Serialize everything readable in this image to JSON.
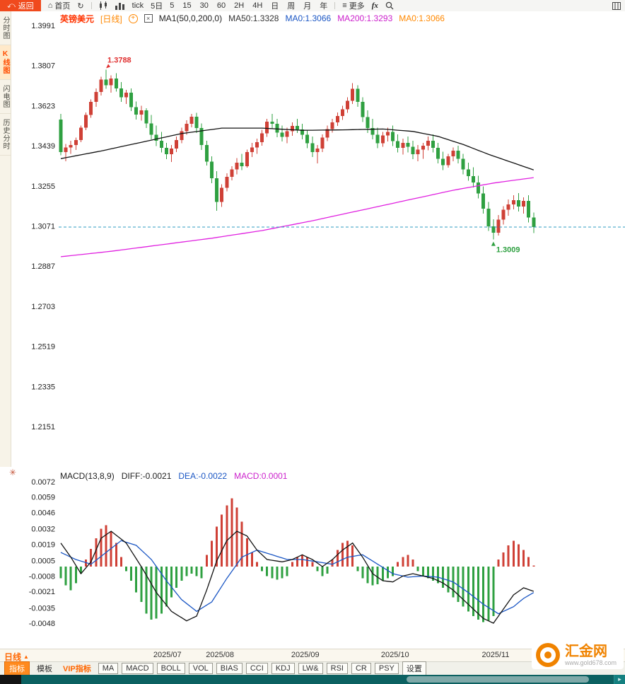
{
  "toolbar": {
    "back_label": "返回",
    "home_label": "首页",
    "tick_label": "tick",
    "five_day_label": "5日",
    "periods": [
      "5",
      "15",
      "30",
      "60",
      "2H",
      "4H",
      "日",
      "周",
      "月",
      "年"
    ],
    "more_label": "更多",
    "fx_label": "fx"
  },
  "side_tabs": [
    {
      "label": "分时图",
      "active": false
    },
    {
      "label": "K线图",
      "active": true
    },
    {
      "label": "闪电图",
      "active": false
    },
    {
      "label": "历史分时",
      "active": false
    }
  ],
  "price_header": {
    "symbol": "英镑美元",
    "period": "[日线]",
    "ma_param": "MA1(50,0,200,0)",
    "ma_items": [
      {
        "text": "MA50:1.3328",
        "color": "#333333"
      },
      {
        "text": "MA0:1.3066",
        "color": "#1a56c4"
      },
      {
        "text": "MA200:1.3293",
        "color": "#cc22cc"
      },
      {
        "text": "MA0:1.3066",
        "color": "#ff8800"
      }
    ]
  },
  "macd_header": {
    "items": [
      {
        "text": "MACD(13,8,9)",
        "color": "#222222"
      },
      {
        "text": "DIFF:-0.0021",
        "color": "#222222"
      },
      {
        "text": "DEA:-0.0022",
        "color": "#1a56c4"
      },
      {
        "text": "MACD:0.0001",
        "color": "#cc22cc"
      }
    ]
  },
  "bottom_bar": {
    "period_selector": "日线",
    "tabs": [
      {
        "label": "指标",
        "style": "active"
      },
      {
        "label": "模板",
        "style": "plain"
      },
      {
        "label": "VIP指标",
        "style": "vip"
      },
      {
        "label": "MA",
        "style": "box"
      },
      {
        "label": "MACD",
        "style": "box"
      },
      {
        "label": "BOLL",
        "style": "box"
      },
      {
        "label": "VOL",
        "style": "box"
      },
      {
        "label": "BIAS",
        "style": "box"
      },
      {
        "label": "CCI",
        "style": "box"
      },
      {
        "label": "KDJ",
        "style": "box"
      },
      {
        "label": "LW&",
        "style": "box"
      },
      {
        "label": "RSI",
        "style": "box"
      },
      {
        "label": "CR",
        "style": "box"
      },
      {
        "label": "PSY",
        "style": "box"
      },
      {
        "label": "设置",
        "style": "box"
      }
    ]
  },
  "watermark": {
    "brand": "汇金网",
    "url": "www.gold678.com"
  },
  "chart_data": {
    "type": "candlestick",
    "title": "英镑美元 日线 (GBP/USD daily with MA50/MA200 and MACD)",
    "price_axis": {
      "labels": [
        1.3991,
        1.3807,
        1.3623,
        1.3439,
        1.3255,
        1.3071,
        1.2887,
        1.2703,
        1.2519,
        1.2335,
        1.2151
      ],
      "top_value": 1.3991,
      "bottom_value": 1.2151
    },
    "x_ticks": [
      {
        "label": "2025/07",
        "pos": 0.19
      },
      {
        "label": "2025/08",
        "pos": 0.283
      },
      {
        "label": "2025/09",
        "pos": 0.434
      },
      {
        "label": "2025/10",
        "pos": 0.593
      },
      {
        "label": "2025/11",
        "pos": 0.771
      }
    ],
    "current_price": 1.3066,
    "annotations": {
      "high_label": "1.3788",
      "low_label": "1.3009"
    },
    "colors": {
      "up": "#cf4036",
      "down": "#2fa041",
      "ma50": "#111111",
      "ma200": "#e020e0",
      "current_line": "#2d9bc1",
      "diff": "#111111",
      "dea": "#1a56c4",
      "hist_up": "#cf4036",
      "hist_down": "#2fa041"
    },
    "ohlc": [
      [
        1.356,
        1.3585,
        1.3395,
        1.341
      ],
      [
        1.341,
        1.3448,
        1.3368,
        1.3432
      ],
      [
        1.3432,
        1.3462,
        1.3402,
        1.3442
      ],
      [
        1.3442,
        1.3476,
        1.342,
        1.3466
      ],
      [
        1.3466,
        1.3532,
        1.3455,
        1.3522
      ],
      [
        1.3522,
        1.3592,
        1.351,
        1.358
      ],
      [
        1.358,
        1.3652,
        1.3568,
        1.364
      ],
      [
        1.364,
        1.3702,
        1.3618,
        1.3686
      ],
      [
        1.3686,
        1.3756,
        1.367,
        1.3742
      ],
      [
        1.3742,
        1.3788,
        1.37,
        1.3716
      ],
      [
        1.3716,
        1.3762,
        1.3682,
        1.3748
      ],
      [
        1.3748,
        1.3772,
        1.3688,
        1.3702
      ],
      [
        1.3702,
        1.3732,
        1.364,
        1.3662
      ],
      [
        1.3662,
        1.3696,
        1.363,
        1.3682
      ],
      [
        1.3682,
        1.3702,
        1.3598,
        1.3616
      ],
      [
        1.3616,
        1.3642,
        1.356,
        1.3582
      ],
      [
        1.3582,
        1.3622,
        1.3554,
        1.3602
      ],
      [
        1.3602,
        1.3612,
        1.352,
        1.3542
      ],
      [
        1.3542,
        1.358,
        1.3468,
        1.349
      ],
      [
        1.349,
        1.3532,
        1.3438,
        1.3462
      ],
      [
        1.3462,
        1.3502,
        1.3408,
        1.343
      ],
      [
        1.343,
        1.3452,
        1.3378,
        1.34
      ],
      [
        1.34,
        1.3442,
        1.3364,
        1.3426
      ],
      [
        1.3426,
        1.3482,
        1.341,
        1.3466
      ],
      [
        1.3466,
        1.3522,
        1.345,
        1.3506
      ],
      [
        1.3506,
        1.3556,
        1.349,
        1.354
      ],
      [
        1.354,
        1.3586,
        1.3524,
        1.3572
      ],
      [
        1.3572,
        1.359,
        1.3498,
        1.352
      ],
      [
        1.352,
        1.3542,
        1.342,
        1.3442
      ],
      [
        1.3442,
        1.3462,
        1.3348,
        1.3366
      ],
      [
        1.3366,
        1.339,
        1.3268,
        1.329
      ],
      [
        1.329,
        1.3322,
        1.3141,
        1.3182
      ],
      [
        1.3182,
        1.3262,
        1.3158,
        1.3246
      ],
      [
        1.3246,
        1.3312,
        1.323,
        1.3296
      ],
      [
        1.3296,
        1.3346,
        1.328,
        1.333
      ],
      [
        1.333,
        1.3382,
        1.3308,
        1.3362
      ],
      [
        1.3362,
        1.3402,
        1.3328,
        1.3346
      ],
      [
        1.3346,
        1.3422,
        1.3338,
        1.341
      ],
      [
        1.341,
        1.3452,
        1.3388,
        1.3432
      ],
      [
        1.3432,
        1.3472,
        1.3402,
        1.3456
      ],
      [
        1.3456,
        1.3512,
        1.344,
        1.3496
      ],
      [
        1.3496,
        1.3562,
        1.348,
        1.355
      ],
      [
        1.355,
        1.3586,
        1.3518,
        1.354
      ],
      [
        1.354,
        1.3562,
        1.3478,
        1.35
      ],
      [
        1.35,
        1.3532,
        1.3458,
        1.348
      ],
      [
        1.348,
        1.3522,
        1.345,
        1.3506
      ],
      [
        1.3506,
        1.3546,
        1.3484,
        1.353
      ],
      [
        1.353,
        1.3562,
        1.3498,
        1.3514
      ],
      [
        1.3514,
        1.354,
        1.3468,
        1.349
      ],
      [
        1.349,
        1.3512,
        1.3428,
        1.345
      ],
      [
        1.345,
        1.3482,
        1.3388,
        1.341
      ],
      [
        1.341,
        1.3442,
        1.3358,
        1.3426
      ],
      [
        1.3426,
        1.3492,
        1.341,
        1.3476
      ],
      [
        1.3476,
        1.3532,
        1.346,
        1.3516
      ],
      [
        1.3516,
        1.3562,
        1.35,
        1.3546
      ],
      [
        1.3546,
        1.3592,
        1.353,
        1.3576
      ],
      [
        1.3576,
        1.3622,
        1.3558,
        1.3606
      ],
      [
        1.3606,
        1.3662,
        1.359,
        1.3646
      ],
      [
        1.3646,
        1.3726,
        1.363,
        1.37
      ],
      [
        1.37,
        1.3716,
        1.3618,
        1.364
      ],
      [
        1.364,
        1.3662,
        1.3548,
        1.357
      ],
      [
        1.357,
        1.3602,
        1.3498,
        1.352
      ],
      [
        1.352,
        1.3562,
        1.3468,
        1.349
      ],
      [
        1.349,
        1.3522,
        1.3428,
        1.345
      ],
      [
        1.345,
        1.3502,
        1.3434,
        1.3486
      ],
      [
        1.3486,
        1.3522,
        1.3458,
        1.3502
      ],
      [
        1.3502,
        1.3532,
        1.3438,
        1.346
      ],
      [
        1.346,
        1.3492,
        1.3408,
        1.343
      ],
      [
        1.343,
        1.3472,
        1.3398,
        1.3452
      ],
      [
        1.3452,
        1.3482,
        1.3408,
        1.3434
      ],
      [
        1.3434,
        1.3462,
        1.3378,
        1.34
      ],
      [
        1.34,
        1.3442,
        1.3368,
        1.3422
      ],
      [
        1.3422,
        1.3452,
        1.338,
        1.344
      ],
      [
        1.344,
        1.3482,
        1.3418,
        1.3462
      ],
      [
        1.3462,
        1.3492,
        1.3408,
        1.343
      ],
      [
        1.343,
        1.3452,
        1.3358,
        1.338
      ],
      [
        1.338,
        1.3412,
        1.3328,
        1.335
      ],
      [
        1.335,
        1.3402,
        1.3338,
        1.339
      ],
      [
        1.339,
        1.3432,
        1.3368,
        1.3416
      ],
      [
        1.3416,
        1.344,
        1.3358,
        1.338
      ],
      [
        1.338,
        1.3402,
        1.3308,
        1.333
      ],
      [
        1.333,
        1.3362,
        1.3278,
        1.33
      ],
      [
        1.33,
        1.334,
        1.3248,
        1.327
      ],
      [
        1.327,
        1.3302,
        1.3198,
        1.322
      ],
      [
        1.322,
        1.3252,
        1.3128,
        1.315
      ],
      [
        1.315,
        1.3182,
        1.3048,
        1.307
      ],
      [
        1.307,
        1.3102,
        1.3009,
        1.304
      ],
      [
        1.304,
        1.3122,
        1.3028,
        1.31
      ],
      [
        1.31,
        1.3162,
        1.3078,
        1.3146
      ],
      [
        1.3146,
        1.3192,
        1.3118,
        1.317
      ],
      [
        1.317,
        1.3212,
        1.3148,
        1.319
      ],
      [
        1.319,
        1.3222,
        1.3138,
        1.316
      ],
      [
        1.316,
        1.3202,
        1.3128,
        1.3186
      ],
      [
        1.3186,
        1.3212,
        1.3088,
        1.311
      ],
      [
        1.311,
        1.3132,
        1.3038,
        1.3066
      ]
    ],
    "ma50_points": [
      [
        0,
        1.338
      ],
      [
        8,
        1.3415
      ],
      [
        16,
        1.3455
      ],
      [
        24,
        1.3495
      ],
      [
        32,
        1.352
      ],
      [
        40,
        1.352
      ],
      [
        48,
        1.351
      ],
      [
        56,
        1.3512
      ],
      [
        64,
        1.3516
      ],
      [
        70,
        1.3505
      ],
      [
        75,
        1.3482
      ],
      [
        80,
        1.3445
      ],
      [
        85,
        1.34
      ],
      [
        90,
        1.336
      ],
      [
        94,
        1.3328
      ]
    ],
    "ma200_points": [
      [
        0,
        1.293
      ],
      [
        10,
        1.2955
      ],
      [
        20,
        1.2985
      ],
      [
        30,
        1.3015
      ],
      [
        40,
        1.305
      ],
      [
        50,
        1.3095
      ],
      [
        60,
        1.3145
      ],
      [
        70,
        1.3195
      ],
      [
        78,
        1.3235
      ],
      [
        86,
        1.3268
      ],
      [
        94,
        1.3293
      ]
    ],
    "macd": {
      "params": "(13,8,9)",
      "diff": -0.0021,
      "dea": -0.0022,
      "macd": 0.0001,
      "axis_labels": [
        0.0072,
        0.0059,
        0.0046,
        0.0032,
        0.0019,
        0.0005,
        -0.0008,
        -0.0021,
        -0.0035,
        -0.0048
      ],
      "hist": [
        -0.001,
        -0.0016,
        -0.002,
        -0.0014,
        -0.0006,
        0.0006,
        0.0015,
        0.0024,
        0.0032,
        0.0035,
        0.003,
        0.002,
        0.0008,
        -0.0004,
        -0.0012,
        -0.0022,
        -0.003,
        -0.004,
        -0.0045,
        -0.0044,
        -0.004,
        -0.0034,
        -0.0026,
        -0.0018,
        -0.0012,
        -0.0008,
        -0.0006,
        -0.0008,
        -0.001,
        0.001,
        0.0022,
        0.0034,
        0.0044,
        0.0052,
        0.0058,
        0.005,
        0.0038,
        0.0024,
        0.0012,
        0.0004,
        -0.0004,
        -0.0008,
        -0.001,
        -0.0011,
        -0.001,
        -0.0008,
        0.0004,
        0.0008,
        0.001,
        0.0008,
        0.0004,
        -0.0004,
        -0.0008,
        -0.0006,
        0.0006,
        0.0014,
        0.002,
        0.0022,
        0.0018,
        -0.0004,
        -0.001,
        -0.0014,
        -0.0016,
        -0.0015,
        -0.0012,
        -0.001,
        -0.0008,
        0.0004,
        0.0008,
        0.001,
        0.0006,
        -0.0004,
        -0.0008,
        -0.001,
        -0.0012,
        -0.0014,
        -0.0018,
        -0.0022,
        -0.0026,
        -0.003,
        -0.0034,
        -0.0038,
        -0.0042,
        -0.0045,
        -0.0047,
        -0.0046,
        -0.0042,
        0.0006,
        0.0012,
        0.0018,
        0.0022,
        0.0019,
        0.0014,
        0.0008,
        0.0001
      ],
      "diff_points": [
        [
          0,
          0.002
        ],
        [
          2,
          0.0008
        ],
        [
          4,
          -0.0006
        ],
        [
          6,
          0.0004
        ],
        [
          8,
          0.0024
        ],
        [
          10,
          0.003
        ],
        [
          13,
          0.002
        ],
        [
          16,
          0.0
        ],
        [
          19,
          -0.0022
        ],
        [
          22,
          -0.0038
        ],
        [
          25,
          -0.0046
        ],
        [
          27,
          -0.0042
        ],
        [
          29,
          -0.002
        ],
        [
          31,
          0.0005
        ],
        [
          33,
          0.0022
        ],
        [
          35,
          0.003
        ],
        [
          37,
          0.0026
        ],
        [
          39,
          0.0014
        ],
        [
          41,
          0.0006
        ],
        [
          44,
          0.0004
        ],
        [
          46,
          0.0006
        ],
        [
          48,
          0.001
        ],
        [
          50,
          0.0006
        ],
        [
          52,
          0.0
        ],
        [
          54,
          0.0006
        ],
        [
          56,
          0.0014
        ],
        [
          58,
          0.002
        ],
        [
          60,
          0.0008
        ],
        [
          62,
          -0.0006
        ],
        [
          64,
          -0.0012
        ],
        [
          66,
          -0.0013
        ],
        [
          68,
          -0.0008
        ],
        [
          70,
          -0.0006
        ],
        [
          72,
          -0.0008
        ],
        [
          74,
          -0.001
        ],
        [
          76,
          -0.0014
        ],
        [
          78,
          -0.002
        ],
        [
          80,
          -0.0028
        ],
        [
          82,
          -0.0036
        ],
        [
          84,
          -0.0044
        ],
        [
          86,
          -0.0048
        ],
        [
          88,
          -0.0036
        ],
        [
          90,
          -0.0024
        ],
        [
          92,
          -0.0018
        ],
        [
          94,
          -0.0021
        ]
      ],
      "dea_points": [
        [
          0,
          0.0012
        ],
        [
          3,
          0.0006
        ],
        [
          6,
          0.0002
        ],
        [
          9,
          0.0012
        ],
        [
          12,
          0.0022
        ],
        [
          15,
          0.0018
        ],
        [
          18,
          0.0006
        ],
        [
          21,
          -0.0012
        ],
        [
          24,
          -0.0028
        ],
        [
          27,
          -0.0038
        ],
        [
          30,
          -0.003
        ],
        [
          33,
          -0.001
        ],
        [
          36,
          0.0008
        ],
        [
          39,
          0.0014
        ],
        [
          42,
          0.001
        ],
        [
          45,
          0.0006
        ],
        [
          48,
          0.0006
        ],
        [
          51,
          0.0004
        ],
        [
          54,
          0.0002
        ],
        [
          57,
          0.0008
        ],
        [
          60,
          0.001
        ],
        [
          63,
          0.0002
        ],
        [
          66,
          -0.0006
        ],
        [
          69,
          -0.0009
        ],
        [
          72,
          -0.0008
        ],
        [
          75,
          -0.0009
        ],
        [
          78,
          -0.0013
        ],
        [
          81,
          -0.0022
        ],
        [
          84,
          -0.0032
        ],
        [
          87,
          -0.004
        ],
        [
          90,
          -0.0034
        ],
        [
          92,
          -0.0027
        ],
        [
          94,
          -0.0022
        ]
      ]
    }
  }
}
